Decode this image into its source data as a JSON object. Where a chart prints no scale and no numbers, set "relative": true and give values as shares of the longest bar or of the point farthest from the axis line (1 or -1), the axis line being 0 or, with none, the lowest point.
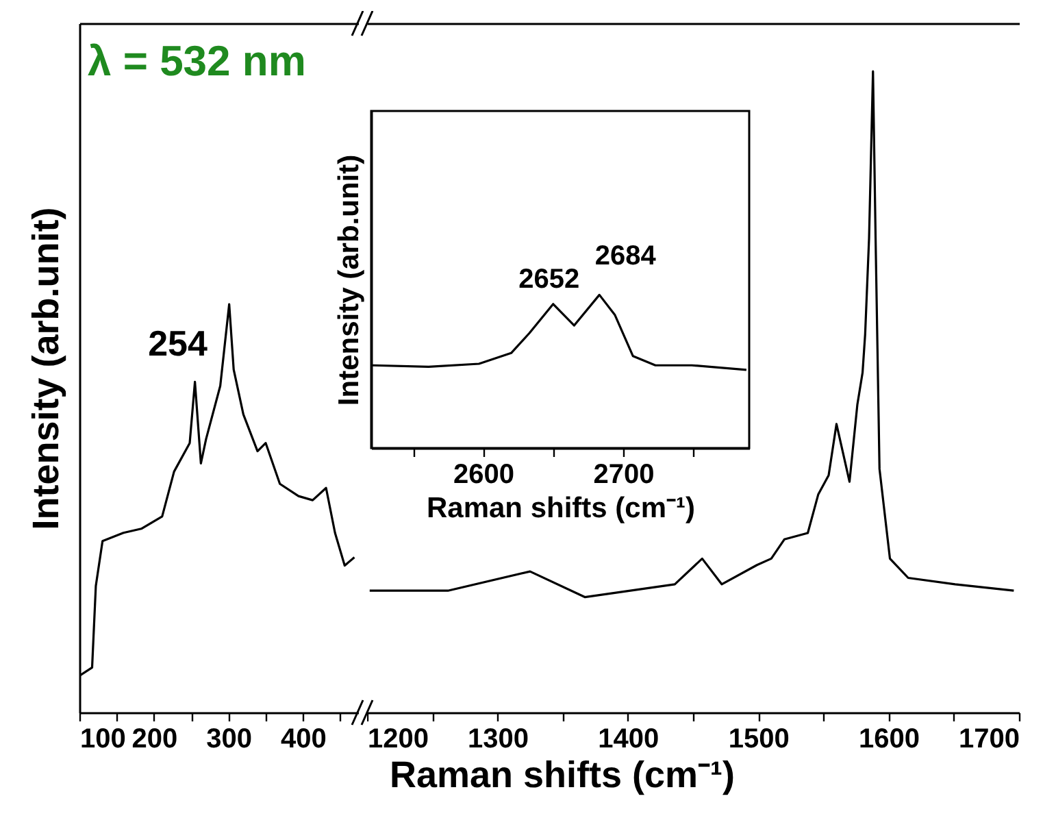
{
  "chart_data": [
    {
      "type": "line",
      "ylabel": "Intensity (arb.unit)",
      "relative": true,
      "xlim": [
        100,
        475
      ],
      "xticks": [
        100,
        {
          "value": 150,
          "label": null
        },
        200,
        {
          "value": 250,
          "label": null
        },
        300,
        {
          "value": 350,
          "label": null
        },
        400,
        {
          "value": 450,
          "label": null
        }
      ],
      "annotations": [
        "λ = 532 nm",
        {
          "text": "254",
          "x": 254,
          "y": 0.81
        }
      ],
      "series": [
        {
          "color": "#000000",
          "x": [
            100,
            117,
            122,
            131,
            159,
            183,
            211,
            227,
            248,
            255,
            263,
            270,
            289,
            301,
            307,
            320,
            339,
            350,
            369,
            394,
            413,
            431,
            443,
            456,
            469
          ],
          "values": [
            0.09,
            0.11,
            0.31,
            0.42,
            0.44,
            0.45,
            0.48,
            0.59,
            0.66,
            0.81,
            0.61,
            0.67,
            0.8,
            1,
            0.84,
            0.73,
            0.64,
            0.66,
            0.56,
            0.53,
            0.52,
            0.55,
            0.44,
            0.36,
            0.38
          ]
        }
      ]
    },
    {
      "type": "line",
      "xlabel": "Raman shifts (cm⁻¹)",
      "relative": true,
      "xlim": [
        1200,
        1700
      ],
      "xticks": [
        1200,
        {
          "value": 1250,
          "label": null
        },
        1300,
        {
          "value": 1350,
          "label": null
        },
        1400,
        {
          "value": 1450,
          "label": null
        },
        1500,
        {
          "value": 1550,
          "label": null
        },
        1600,
        {
          "value": 1650,
          "label": null
        },
        1700
      ],
      "series": [
        {
          "color": "#000000",
          "x": [
            1202,
            1262,
            1325,
            1367,
            1436,
            1457,
            1472,
            1499,
            1510,
            1520,
            1538,
            1546,
            1554,
            1560,
            1570,
            1576,
            1580,
            1582,
            1585,
            1588,
            1590,
            1593,
            1601,
            1615,
            1651,
            1696
          ],
          "values": [
            0.19,
            0.19,
            0.22,
            0.18,
            0.2,
            0.24,
            0.2,
            0.23,
            0.24,
            0.27,
            0.28,
            0.34,
            0.37,
            0.45,
            0.36,
            0.48,
            0.53,
            0.59,
            0.74,
            1,
            0.74,
            0.38,
            0.24,
            0.21,
            0.2,
            0.19
          ]
        }
      ]
    },
    {
      "type": "line",
      "xlabel": "Raman shifts (cm⁻¹)",
      "ylabel": "Intensity (arb.unit)",
      "relative": true,
      "xlim": [
        2520,
        2790
      ],
      "xticks": [
        {
          "value": 2550,
          "label": null
        },
        2600,
        {
          "value": 2650,
          "label": null
        },
        2700,
        {
          "value": 2750,
          "label": null
        }
      ],
      "annotations": [
        {
          "text": "2652",
          "x": 2650,
          "y": 0.94
        },
        {
          "text": "2684",
          "x": 2683,
          "y": 1
        }
      ],
      "series": [
        {
          "color": "#000000",
          "x": [
            2521,
            2561,
            2597,
            2620,
            2633,
            2650,
            2665,
            2683,
            2694,
            2707,
            2723,
            2749,
            2788
          ],
          "values": [
            0.54,
            0.53,
            0.55,
            0.62,
            0.75,
            0.94,
            0.8,
            1,
            0.87,
            0.6,
            0.54,
            0.54,
            0.51
          ]
        }
      ]
    }
  ]
}
